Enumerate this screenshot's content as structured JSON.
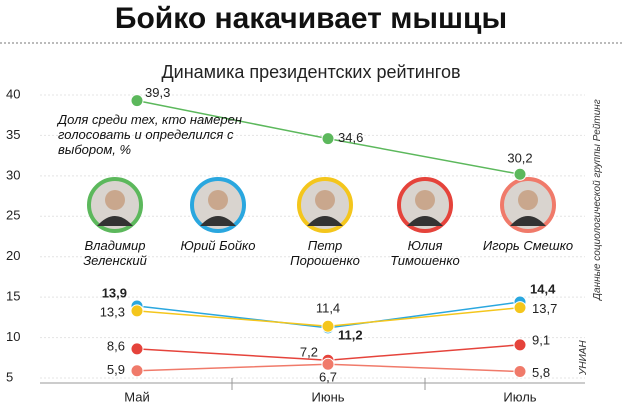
{
  "chart_data": {
    "type": "line",
    "title": "Бойко накачивает мышцы",
    "subtitle": "Динамика президентских рейтингов",
    "annotation": "Доля среди тех, кто намерен голосовать и определился с выбором, %",
    "source": "Данные социологической группы Рейтинг",
    "credit": "УНИАН",
    "categories": [
      "Май",
      "Июнь",
      "Июль"
    ],
    "ylim": [
      5,
      40
    ],
    "yticks": [
      5,
      10,
      15,
      20,
      25,
      30,
      35,
      40
    ],
    "grid": true,
    "series": [
      {
        "name": "Владимир Зеленский",
        "color": "#5cb85c",
        "values": [
          39.3,
          34.6,
          30.2
        ],
        "value_labels": [
          "39,3",
          "34,6",
          "30,2"
        ]
      },
      {
        "name": "Юрий Бойко",
        "color": "#2aa7df",
        "values": [
          13.9,
          11.2,
          14.4
        ],
        "value_labels": [
          "13,9",
          "11,2",
          "14,4"
        ]
      },
      {
        "name": "Петр Порошенко",
        "color": "#f4c61c",
        "values": [
          13.3,
          11.4,
          13.7
        ],
        "value_labels": [
          "13,3",
          "11,4",
          "13,7"
        ]
      },
      {
        "name": "Юлия Тимошенко",
        "color": "#e5433b",
        "values": [
          8.6,
          7.2,
          9.1
        ],
        "value_labels": [
          "8,6",
          "7,2",
          "9,1"
        ]
      },
      {
        "name": "Игорь Смешко",
        "color": "#f07a6a",
        "values": [
          5.9,
          6.7,
          5.8
        ],
        "value_labels": [
          "5,9",
          "6,7",
          "5,8"
        ]
      }
    ]
  }
}
